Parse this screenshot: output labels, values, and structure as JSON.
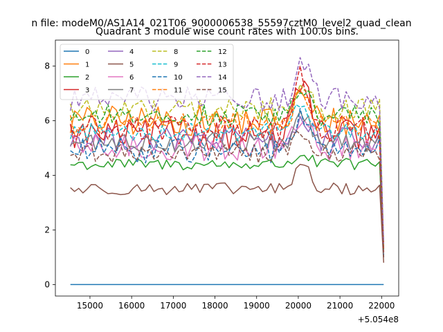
{
  "chart_data": {
    "type": "line",
    "suptitle": "n file: modeM0/AS1A14_021T06_9000006538_55597cztM0_level2_quad_clean",
    "title": "Quadrant 3 module wise count rates with 100.0s bins.",
    "xlabel": "",
    "ylabel": "",
    "x_offset_label": "+5.054e8",
    "x_range": [
      14530,
      22050
    ],
    "xlim": [
      14170,
      22410
    ],
    "ylim": [
      -0.42,
      8.95
    ],
    "x_ticks": [
      15000,
      16000,
      17000,
      18000,
      19000,
      20000,
      21000,
      22000
    ],
    "y_ticks": [
      0,
      2,
      4,
      6,
      8
    ],
    "legend": {
      "placement": "top-left",
      "columns": 4
    },
    "series": [
      {
        "name": "0",
        "color": "#1f77b4",
        "dash": "solid",
        "base": 0.0,
        "noise": 0.0,
        "peak": 0.0,
        "end": 0.0
      },
      {
        "name": "1",
        "color": "#ff7f0e",
        "dash": "solid",
        "base": 6.0,
        "noise": 0.55,
        "peak": 1.0,
        "end": 1.3
      },
      {
        "name": "2",
        "color": "#2ca02c",
        "dash": "solid",
        "base": 4.4,
        "noise": 0.22,
        "peak": 0.4,
        "end": 1.1
      },
      {
        "name": "3",
        "color": "#d62728",
        "dash": "solid",
        "base": 5.5,
        "noise": 0.55,
        "peak": 2.2,
        "end": 1.2
      },
      {
        "name": "4",
        "color": "#9467bd",
        "dash": "solid",
        "base": 5.3,
        "noise": 0.45,
        "peak": 0.7,
        "end": 1.0
      },
      {
        "name": "5",
        "color": "#8c564b",
        "dash": "solid",
        "base": 3.5,
        "noise": 0.22,
        "peak": 1.0,
        "end": 0.8
      },
      {
        "name": "6",
        "color": "#e377c2",
        "dash": "solid",
        "base": 5.0,
        "noise": 0.5,
        "peak": 1.3,
        "end": 1.1
      },
      {
        "name": "7",
        "color": "#7f7f7f",
        "dash": "solid",
        "base": 5.2,
        "noise": 0.35,
        "peak": 1.0,
        "end": 1.0
      },
      {
        "name": "8",
        "color": "#bcbd22",
        "dash": "dashed",
        "base": 6.4,
        "noise": 0.45,
        "peak": 1.0,
        "end": 1.4
      },
      {
        "name": "9",
        "color": "#17becf",
        "dash": "dashed",
        "base": 5.6,
        "noise": 0.35,
        "peak": 1.2,
        "end": 1.2
      },
      {
        "name": "10",
        "color": "#1f77b4",
        "dash": "dashed",
        "base": 4.9,
        "noise": 0.45,
        "peak": 1.3,
        "end": 1.0
      },
      {
        "name": "11",
        "color": "#ff7f0e",
        "dash": "dashed",
        "base": 5.9,
        "noise": 0.4,
        "peak": 1.3,
        "end": 1.3
      },
      {
        "name": "12",
        "color": "#2ca02c",
        "dash": "dashed",
        "base": 6.2,
        "noise": 0.4,
        "peak": 1.1,
        "end": 1.3
      },
      {
        "name": "13",
        "color": "#d62728",
        "dash": "dashed",
        "base": 5.7,
        "noise": 0.5,
        "peak": 2.0,
        "end": 1.2
      },
      {
        "name": "14",
        "color": "#9467bd",
        "dash": "dashed",
        "base": 6.8,
        "noise": 0.45,
        "peak": 1.5,
        "end": 1.5
      },
      {
        "name": "15",
        "color": "#8c564b",
        "dash": "dashed",
        "base": 4.8,
        "noise": 0.35,
        "peak": 0.9,
        "end": 1.0
      }
    ],
    "peak_center": 20100,
    "n_points": 76
  }
}
